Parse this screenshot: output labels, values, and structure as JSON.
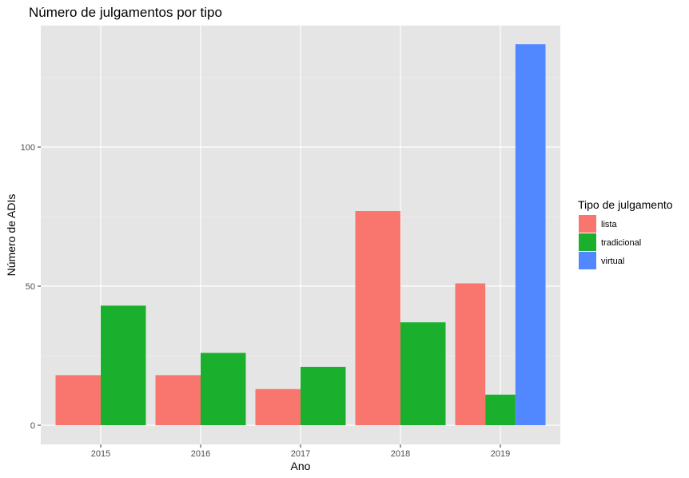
{
  "chart_data": {
    "type": "bar",
    "title": "Número de julgamentos por tipo",
    "xlabel": "Ano",
    "ylabel": "Número de ADIs",
    "categories": [
      "2015",
      "2016",
      "2017",
      "2018",
      "2019"
    ],
    "series": [
      {
        "name": "lista",
        "color": "#F8766D",
        "values": [
          18,
          18,
          13,
          77,
          51
        ]
      },
      {
        "name": "tradicional",
        "color": "#1AB02E",
        "values": [
          43,
          26,
          21,
          37,
          11
        ]
      },
      {
        "name": "virtual",
        "color": "#5188FF",
        "values": [
          0,
          0,
          0,
          0,
          137
        ]
      }
    ],
    "ylim": [
      0,
      144
    ],
    "yticks": [
      0,
      50,
      100
    ],
    "grid": true,
    "legend": {
      "title": "Tipo de julgamento",
      "position": "right"
    },
    "panel_background": "#E5E5E5"
  }
}
